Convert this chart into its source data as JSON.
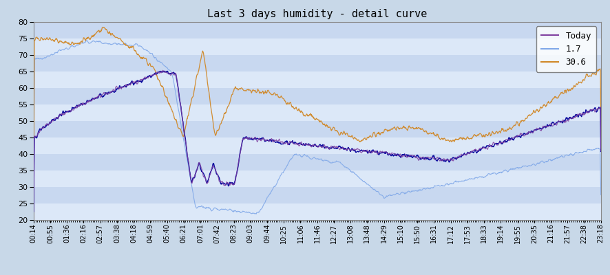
{
  "title": "Last 3 days humidity - detail curve",
  "ylim": [
    20,
    80
  ],
  "yticks": [
    20,
    25,
    30,
    35,
    40,
    45,
    50,
    55,
    60,
    65,
    70,
    75,
    80
  ],
  "bg_outer": "#c8d8e8",
  "bg_inner": "#c8d8f0",
  "stripe_white": "#dce8f8",
  "stripe_blue": "#b8cce4",
  "line_today_color": "#8040a0",
  "line_today_dark": "#1010a0",
  "line_17_color": "#80a8e8",
  "line_306_color": "#d08828",
  "legend_labels": [
    "Today",
    "1.7",
    "30.6"
  ],
  "x_labels": [
    "00:14",
    "00:55",
    "01:36",
    "02:16",
    "02:57",
    "03:38",
    "04:18",
    "04:59",
    "05:40",
    "06:21",
    "07:01",
    "07:42",
    "08:23",
    "09:03",
    "09:44",
    "10:25",
    "11:06",
    "11:46",
    "12:27",
    "13:08",
    "13:48",
    "14:29",
    "15:10",
    "15:50",
    "16:31",
    "17:12",
    "17:53",
    "18:33",
    "19:14",
    "19:55",
    "20:35",
    "21:16",
    "21:57",
    "22:38",
    "23:18"
  ],
  "figsize": [
    8.86,
    4.0
  ],
  "dpi": 100
}
